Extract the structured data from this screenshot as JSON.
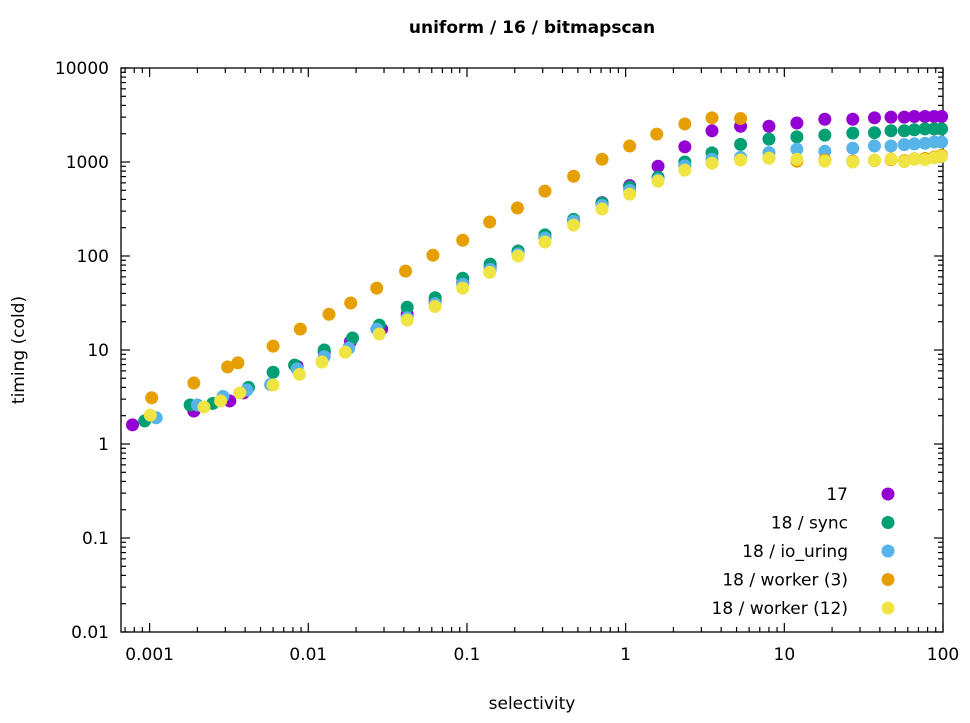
{
  "chart_data": {
    "type": "scatter",
    "title": "uniform / 16 / bitmapscan",
    "xlabel": "selectivity",
    "ylabel": "timing (cold)",
    "xscale": "log",
    "yscale": "log",
    "xlim": [
      0.00066,
      100
    ],
    "ylim": [
      0.01,
      10000
    ],
    "xticks": [
      0.001,
      0.01,
      0.1,
      1,
      10,
      100
    ],
    "xtick_labels": [
      "0.001",
      "0.01",
      "0.1",
      "1",
      "10",
      "100"
    ],
    "yticks": [
      0.01,
      0.1,
      1,
      10,
      100,
      1000,
      10000
    ],
    "ytick_labels": [
      "0.01",
      "0.1",
      "1",
      "10",
      "100",
      "1000",
      "10000"
    ],
    "grid": false,
    "legend_position": "bottom-right",
    "series": [
      {
        "name": "17",
        "color": "#9400d3",
        "points": [
          [
            0.00078,
            1.6
          ],
          [
            0.0019,
            2.24
          ],
          [
            0.0032,
            2.87
          ],
          [
            0.0039,
            3.5
          ],
          [
            0.0058,
            4.3
          ],
          [
            0.0085,
            6.7
          ],
          [
            0.0126,
            9.5
          ],
          [
            0.0184,
            12.2
          ],
          [
            0.029,
            16.7
          ],
          [
            0.042,
            24
          ],
          [
            0.063,
            33
          ],
          [
            0.094,
            52
          ],
          [
            0.14,
            76
          ],
          [
            0.21,
            112
          ],
          [
            0.31,
            160
          ],
          [
            0.47,
            240
          ],
          [
            0.71,
            370
          ],
          [
            1.06,
            560
          ],
          [
            1.6,
            900
          ],
          [
            2.36,
            1450
          ],
          [
            3.5,
            2150
          ],
          [
            5.3,
            2400
          ],
          [
            8,
            2400
          ],
          [
            12,
            2600
          ],
          [
            18,
            2850
          ],
          [
            27,
            2850
          ],
          [
            37,
            2950
          ],
          [
            47,
            3000
          ],
          [
            57,
            3000
          ],
          [
            66,
            3050
          ],
          [
            77,
            3050
          ],
          [
            88,
            3050
          ],
          [
            98,
            3050
          ]
        ]
      },
      {
        "name": "18 / sync",
        "color": "#009e73",
        "points": [
          [
            0.00093,
            1.76
          ],
          [
            0.0018,
            2.6
          ],
          [
            0.0025,
            2.7
          ],
          [
            0.0042,
            4.0
          ],
          [
            0.006,
            5.8
          ],
          [
            0.0082,
            6.9
          ],
          [
            0.0126,
            10
          ],
          [
            0.019,
            13.4
          ],
          [
            0.028,
            18.4
          ],
          [
            0.042,
            28.5
          ],
          [
            0.063,
            36
          ],
          [
            0.094,
            58
          ],
          [
            0.14,
            82
          ],
          [
            0.21,
            113
          ],
          [
            0.31,
            168
          ],
          [
            0.47,
            245
          ],
          [
            0.71,
            365
          ],
          [
            1.06,
            540
          ],
          [
            1.6,
            690
          ],
          [
            2.36,
            1000
          ],
          [
            3.5,
            1250
          ],
          [
            5.3,
            1540
          ],
          [
            8,
            1750
          ],
          [
            12,
            1850
          ],
          [
            18,
            1930
          ],
          [
            27,
            2030
          ],
          [
            37,
            2050
          ],
          [
            47,
            2150
          ],
          [
            57,
            2150
          ],
          [
            66,
            2200
          ],
          [
            77,
            2250
          ],
          [
            88,
            2250
          ],
          [
            98,
            2250
          ]
        ]
      },
      {
        "name": "18 / io_uring",
        "color": "#56b4e9",
        "points": [
          [
            0.0011,
            1.9
          ],
          [
            0.002,
            2.6
          ],
          [
            0.0029,
            3.2
          ],
          [
            0.0041,
            3.75
          ],
          [
            0.0058,
            4.3
          ],
          [
            0.0085,
            6.3
          ],
          [
            0.0126,
            8.5
          ],
          [
            0.018,
            10.5
          ],
          [
            0.027,
            16.7
          ],
          [
            0.042,
            22
          ],
          [
            0.063,
            31
          ],
          [
            0.094,
            50
          ],
          [
            0.14,
            72
          ],
          [
            0.21,
            105
          ],
          [
            0.31,
            155
          ],
          [
            0.47,
            235
          ],
          [
            0.71,
            345
          ],
          [
            1.06,
            500
          ],
          [
            1.6,
            650
          ],
          [
            2.36,
            910
          ],
          [
            3.5,
            1070
          ],
          [
            5.3,
            1120
          ],
          [
            8,
            1260
          ],
          [
            12,
            1370
          ],
          [
            18,
            1300
          ],
          [
            27,
            1400
          ],
          [
            37,
            1480
          ],
          [
            47,
            1480
          ],
          [
            57,
            1530
          ],
          [
            66,
            1560
          ],
          [
            77,
            1580
          ],
          [
            88,
            1630
          ],
          [
            98,
            1630
          ]
        ]
      },
      {
        "name": "18 / worker (3)",
        "color": "#e69f00",
        "points": [
          [
            0.00103,
            3.1
          ],
          [
            0.0019,
            4.45
          ],
          [
            0.0031,
            6.6
          ],
          [
            0.0036,
            7.3
          ],
          [
            0.006,
            11
          ],
          [
            0.0089,
            16.7
          ],
          [
            0.0135,
            24
          ],
          [
            0.0185,
            31.6
          ],
          [
            0.027,
            45.5
          ],
          [
            0.041,
            69
          ],
          [
            0.061,
            102
          ],
          [
            0.094,
            147
          ],
          [
            0.139,
            230
          ],
          [
            0.208,
            324
          ],
          [
            0.31,
            490
          ],
          [
            0.47,
            705
          ],
          [
            0.71,
            1070
          ],
          [
            1.06,
            1480
          ],
          [
            1.57,
            1980
          ],
          [
            2.36,
            2540
          ],
          [
            3.5,
            2950
          ],
          [
            5.3,
            2900
          ],
          [
            8,
            1100
          ],
          [
            12,
            1020
          ],
          [
            18,
            1050
          ],
          [
            27,
            1020
          ],
          [
            37,
            1040
          ],
          [
            47,
            1060
          ],
          [
            57,
            1030
          ],
          [
            66,
            1080
          ],
          [
            77,
            1090
          ],
          [
            88,
            1130
          ],
          [
            98,
            1180
          ]
        ]
      },
      {
        "name": "18 / worker (12)",
        "color": "#f0e442",
        "points": [
          [
            0.00101,
            2.03
          ],
          [
            0.0022,
            2.47
          ],
          [
            0.0028,
            2.87
          ],
          [
            0.0037,
            3.5
          ],
          [
            0.006,
            4.24
          ],
          [
            0.0088,
            5.5
          ],
          [
            0.0122,
            7.45
          ],
          [
            0.0171,
            9.5
          ],
          [
            0.028,
            14.8
          ],
          [
            0.042,
            20.8
          ],
          [
            0.063,
            29
          ],
          [
            0.094,
            45.5
          ],
          [
            0.139,
            67
          ],
          [
            0.21,
            100
          ],
          [
            0.31,
            141
          ],
          [
            0.47,
            213
          ],
          [
            0.71,
            316
          ],
          [
            1.06,
            455
          ],
          [
            1.6,
            625
          ],
          [
            2.36,
            820
          ],
          [
            3.5,
            970
          ],
          [
            5.3,
            1050
          ],
          [
            8,
            1100
          ],
          [
            12,
            1070
          ],
          [
            18,
            1020
          ],
          [
            27,
            1000
          ],
          [
            37,
            1050
          ],
          [
            47,
            1080
          ],
          [
            57,
            1010
          ],
          [
            66,
            1070
          ],
          [
            77,
            1060
          ],
          [
            88,
            1110
          ],
          [
            98,
            1150
          ]
        ]
      }
    ]
  }
}
